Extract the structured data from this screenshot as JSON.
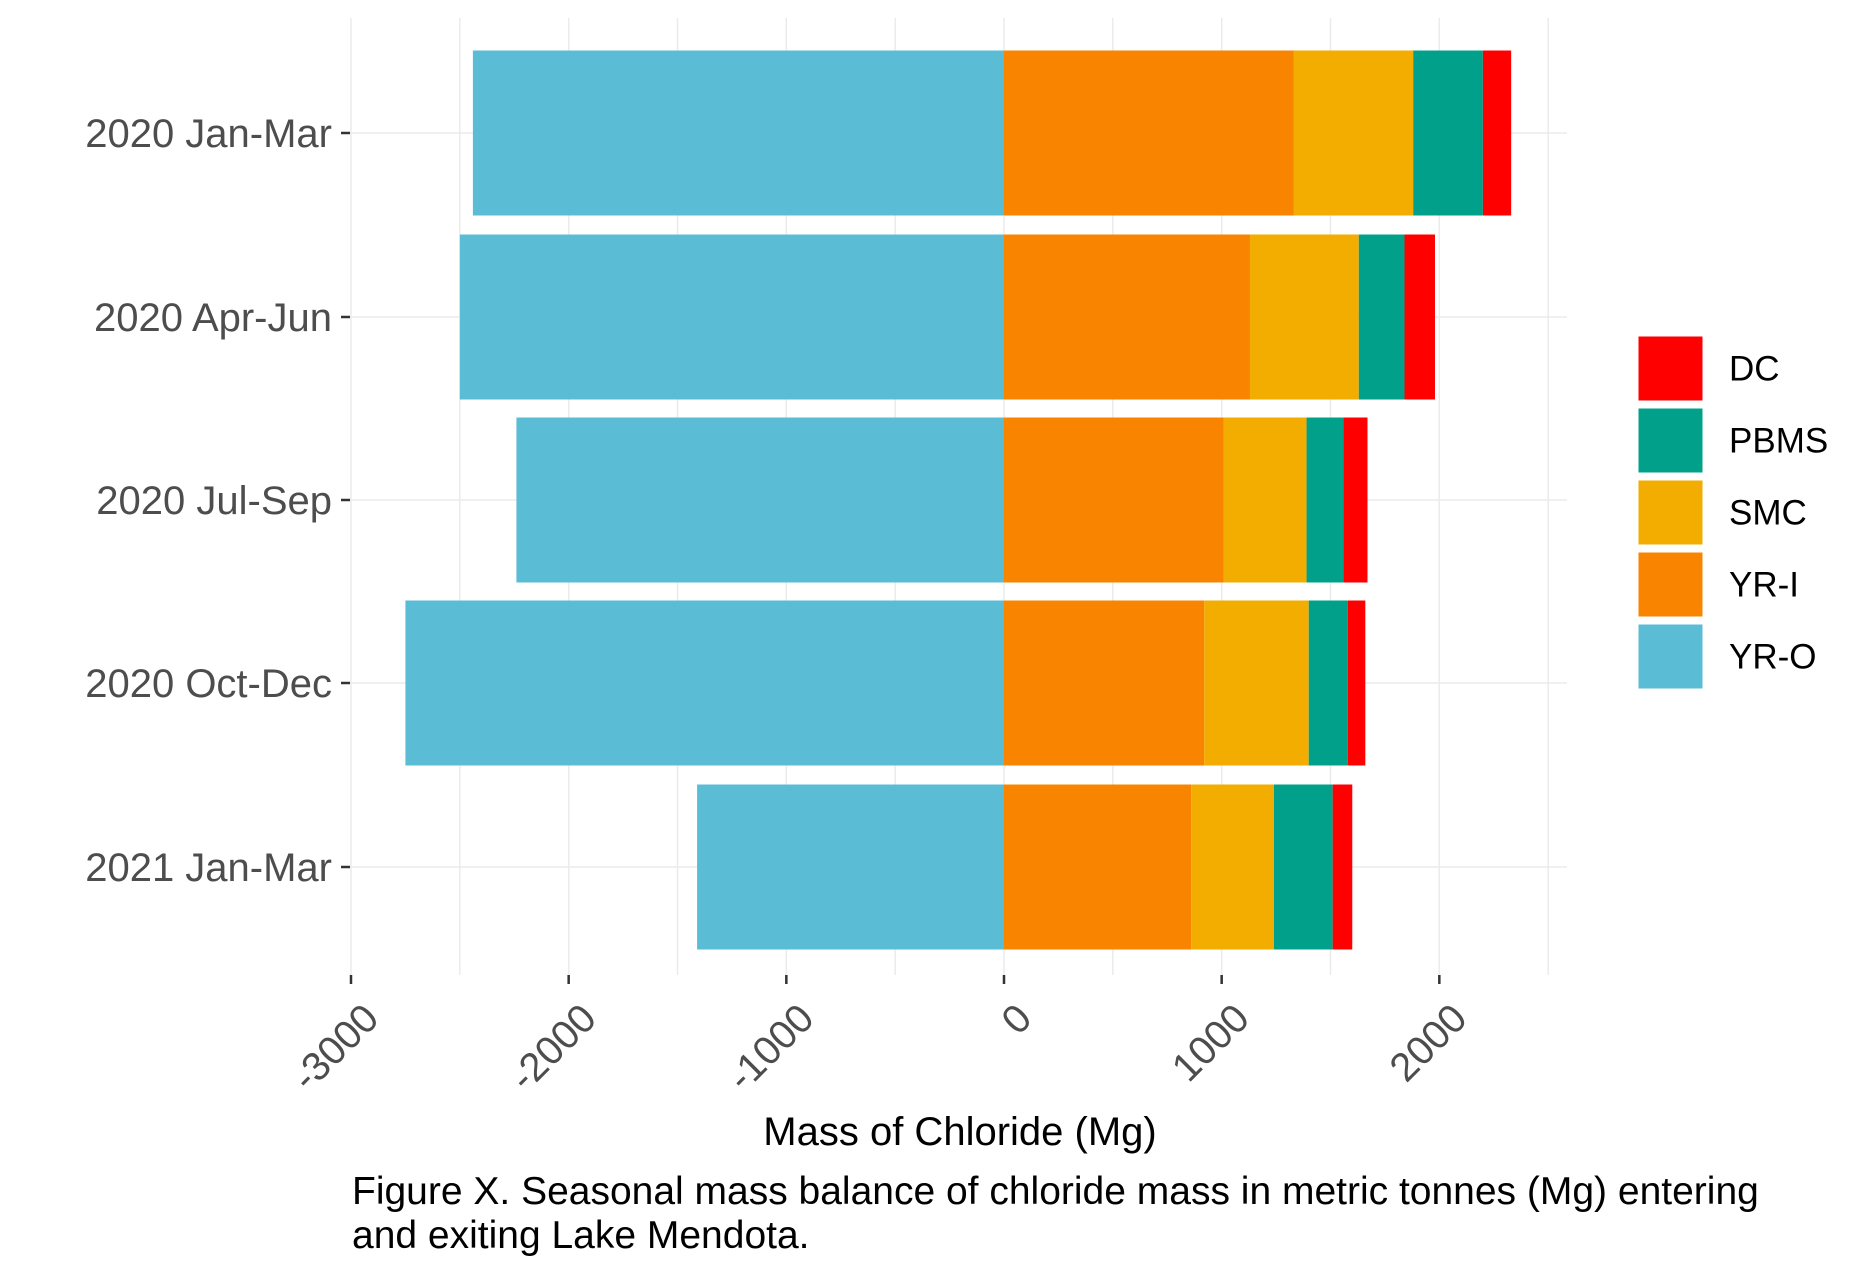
{
  "chart_data": {
    "type": "bar",
    "orientation": "horizontal",
    "stacked": true,
    "xlabel": "Mass of Chloride (Mg)",
    "xlim": [
      -3000,
      2500
    ],
    "xticks": [
      -3000,
      -2000,
      -1000,
      0,
      1000,
      2000
    ],
    "xtick_labels": [
      "-3000",
      "-2000",
      "-1000",
      "0",
      "1000",
      "2000"
    ],
    "grid": true,
    "legend_position": "right",
    "categories": [
      "2020 Jan-Mar",
      "2020 Apr-Jun",
      "2020 Jul-Sep",
      "2020 Oct-Dec",
      "2021 Jan-Mar"
    ],
    "series": [
      {
        "name": "YR-O",
        "color": "#5BBCD6",
        "values": [
          -2440,
          -2500,
          -2240,
          -2750,
          -1410
        ]
      },
      {
        "name": "YR-I",
        "color": "#F98400",
        "values": [
          1330,
          1130,
          1010,
          920,
          860
        ]
      },
      {
        "name": "SMC",
        "color": "#F2AD00",
        "values": [
          550,
          500,
          380,
          480,
          380
        ]
      },
      {
        "name": "PBMS",
        "color": "#00A08A",
        "values": [
          320,
          210,
          170,
          180,
          270
        ]
      },
      {
        "name": "DC",
        "color": "#FF0000",
        "values": [
          130,
          140,
          110,
          80,
          90
        ]
      }
    ],
    "legend_order": [
      "DC",
      "PBMS",
      "SMC",
      "YR-I",
      "YR-O"
    ]
  },
  "caption": {
    "line1": "Figure X. Seasonal mass balance of chloride mass in metric tonnes (Mg) entering",
    "line2": "and exiting Lake Mendota."
  }
}
